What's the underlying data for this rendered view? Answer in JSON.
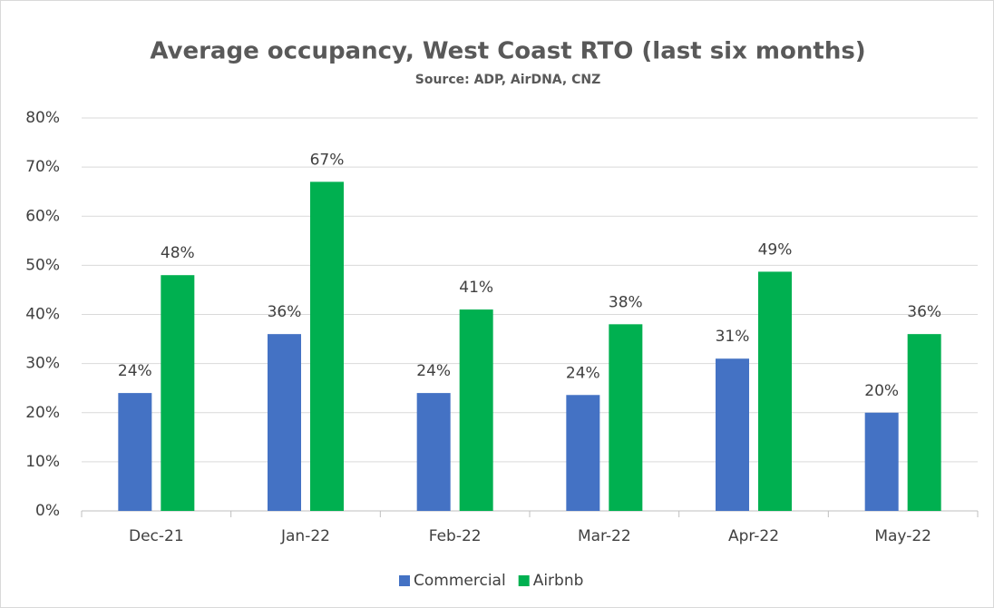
{
  "chart_data": {
    "type": "bar",
    "title": "Average occupancy, West Coast RTO (last six months)",
    "subtitle": "Source: ADP, AirDNA, CNZ",
    "categories": [
      "Dec-21",
      "Jan-22",
      "Feb-22",
      "Mar-22",
      "Apr-22",
      "May-22"
    ],
    "series": [
      {
        "name": "Commercial",
        "color": "#4472c4",
        "values": [
          24,
          36,
          24,
          23.6,
          31,
          20
        ],
        "value_labels": [
          "24%",
          "36%",
          "24%",
          "24%",
          "31%",
          "20%"
        ]
      },
      {
        "name": "Airbnb",
        "color": "#00b050",
        "values": [
          48,
          67,
          41,
          38,
          48.7,
          36
        ],
        "value_labels": [
          "48%",
          "67%",
          "41%",
          "38%",
          "49%",
          "36%"
        ]
      }
    ],
    "ylim": [
      0,
      80
    ],
    "yticks": [
      {
        "value": 0,
        "label": "0%"
      },
      {
        "value": 10,
        "label": "10%"
      },
      {
        "value": 20,
        "label": "20%"
      },
      {
        "value": 30,
        "label": "30%"
      },
      {
        "value": 40,
        "label": "40%"
      },
      {
        "value": 50,
        "label": "50%"
      },
      {
        "value": 60,
        "label": "60%"
      },
      {
        "value": 70,
        "label": "70%"
      },
      {
        "value": 80,
        "label": "80%"
      }
    ],
    "grid": true,
    "legend": "bottom"
  }
}
